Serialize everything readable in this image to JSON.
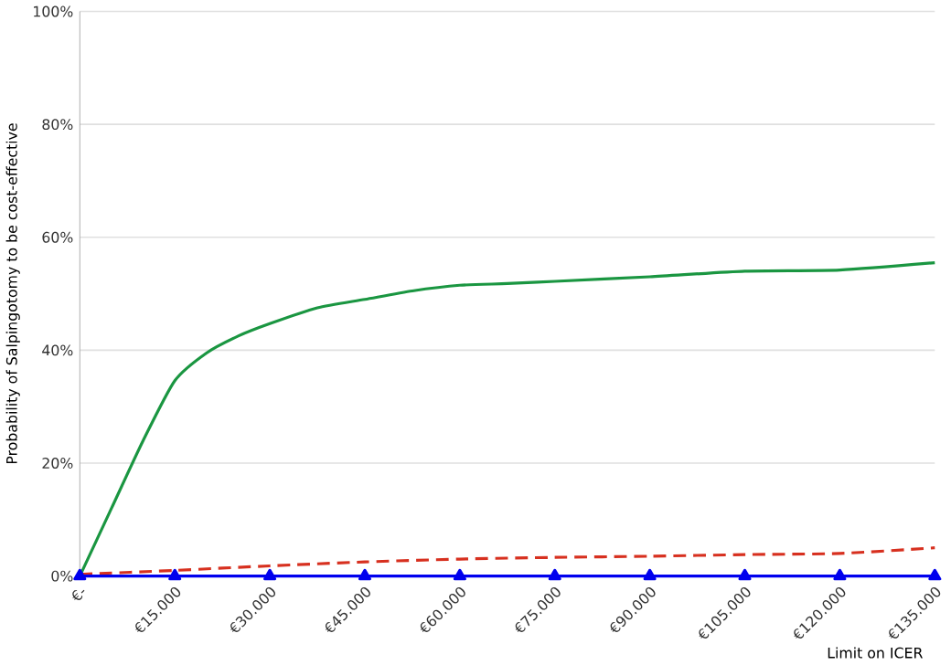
{
  "chart_data": {
    "type": "line",
    "xlabel": "Limit on ICER",
    "ylabel": "Probability of Salpingotomy to be cost-effective",
    "xlim": [
      0,
      135000
    ],
    "ylim": [
      0,
      100
    ],
    "xticks": [
      {
        "value": 0,
        "label": "€-"
      },
      {
        "value": 15000,
        "label": "€15.000"
      },
      {
        "value": 30000,
        "label": "€30.000"
      },
      {
        "value": 45000,
        "label": "€45.000"
      },
      {
        "value": 60000,
        "label": "€60.000"
      },
      {
        "value": 75000,
        "label": "€75.000"
      },
      {
        "value": 90000,
        "label": "€90.000"
      },
      {
        "value": 105000,
        "label": "€105.000"
      },
      {
        "value": 120000,
        "label": "€120.000"
      },
      {
        "value": 135000,
        "label": "€135.000"
      }
    ],
    "yticks": [
      {
        "value": 0,
        "label": "0%"
      },
      {
        "value": 20,
        "label": "20%"
      },
      {
        "value": 40,
        "label": "40%"
      },
      {
        "value": 60,
        "label": "60%"
      },
      {
        "value": 80,
        "label": "80%"
      },
      {
        "value": 100,
        "label": "100%"
      }
    ],
    "grid": "y",
    "series": [
      {
        "color": "#1a9641",
        "line_style": "solid",
        "marker": "none",
        "x": [
          0,
          5000,
          10000,
          15000,
          20000,
          25000,
          30000,
          37500,
          45000,
          52500,
          60000,
          67500,
          75000,
          90000,
          105000,
          120000,
          135000
        ],
        "values": [
          0,
          12,
          24,
          34.6,
          39.5,
          42.5,
          44.7,
          47.5,
          49,
          50.5,
          51.5,
          51.8,
          52.2,
          53,
          54,
          54.2,
          55.5
        ]
      },
      {
        "color": "#d7301f",
        "line_style": "dashed",
        "marker": "none",
        "x": [
          0,
          15000,
          30000,
          45000,
          60000,
          75000,
          90000,
          105000,
          120000,
          135000
        ],
        "values": [
          0.3,
          1,
          1.8,
          2.5,
          3,
          3.3,
          3.5,
          3.8,
          4,
          5
        ]
      },
      {
        "color": "#0000ee",
        "line_style": "solid",
        "marker": "triangle",
        "x": [
          0,
          15000,
          30000,
          45000,
          60000,
          75000,
          90000,
          105000,
          120000,
          135000
        ],
        "values": [
          0,
          0,
          0,
          0,
          0,
          0,
          0,
          0,
          0,
          0
        ]
      }
    ]
  }
}
